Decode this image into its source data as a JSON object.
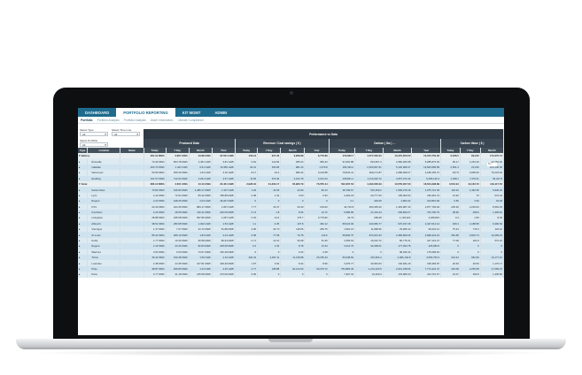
{
  "app": {
    "top_tabs": [
      "DASHBOARD",
      "PORTFOLIO REPORTING",
      "KIT MGMT",
      "ADMIN"
    ],
    "active_top_tab": 1,
    "sub_tabs": [
      "Portfolio",
      "Portfolio Analysis",
      "Portfolio Analysis",
      "Asset Information",
      "Climate Compliance"
    ],
    "active_sub_tab": 0
  },
  "controls": {
    "select_type_label": "Select Type",
    "select_type_value": "All",
    "select_time_label": "Select Time Line",
    "select_time_value": "All",
    "select_portfolio_label": "Select Portfolio",
    "select_portfolio_value": "All"
  },
  "table": {
    "title": "Performance vs Data",
    "groups": [
      "Produced Data",
      "Revenue / Cost savings ( $ )",
      "Carbon ( lbs ) ↔",
      "Carbon Value ( $ )"
    ],
    "search_placeholder": "Fin",
    "columns": [
      "Type",
      "Location",
      "Name",
      "Today",
      "7 Day",
      "Month",
      "Past",
      "Today",
      "7 Day",
      "Month",
      "Year",
      "Today",
      "7 Day",
      "Month",
      "Year",
      "Today",
      "7 Day",
      "Month"
    ],
    "rows": [
      {
        "kind": "group",
        "type": "Battery",
        "location": "",
        "cells": [
          "481.31 MWh",
          "3.807 GWh",
          "13.88 GWh",
          "22.501 GWh",
          "103.13",
          "917.33",
          "3,908.98",
          "6,776.89",
          "476,660.7",
          "4,577,000.00",
          "10,370,000.00",
          "15,370,750.26",
          "6,236.5",
          "80,216",
          "170,375.74"
        ]
      },
      {
        "kind": "row",
        "location": "Roseville",
        "cells": [
          "73.46 MWh",
          "504.78 MWh",
          "2,461 GWh",
          "3.81 GWh",
          "9.62",
          "113.82",
          "485.24",
          "983.43",
          "91,562.88",
          "819,837.4",
          "3,386,482.88",
          "5,285,876.03",
          "99.17",
          "1,243.29",
          "42,754.00"
        ]
      },
      {
        "kind": "row",
        "location": "Oakdale",
        "cells": [
          "203.70 MWh",
          "1.421 GWh",
          "6.51 GWh",
          "10.350 GWh",
          "32.31",
          "333.68",
          "981.23",
          "1,076.8",
          "183,336.2",
          "2,253,837.61",
          "5,130,966.07",
          "16,600,686.89",
          "2,651.3",
          "23,190",
          "104,130.00"
        ]
      },
      {
        "kind": "row",
        "location": "Vancouver",
        "cells": [
          "50.99 MWh",
          "369.33 MWh",
          "1.63 GWh",
          "3.16 GWh",
          "8.17",
          "43.4",
          "986.44",
          "3,103.88",
          "78,844.41",
          "269,171.87",
          "2,288,369.27",
          "2,189,155.72",
          "407.8",
          "3,055.00",
          "75,223.93"
        ]
      },
      {
        "kind": "row",
        "location": "Redding",
        "cells": [
          "101.57 MWh",
          "712.04 MWh",
          "3.261 GWh",
          "4.57 GWh",
          "11.65",
          "370.40",
          "2,444.78",
          "4,221.03",
          "108,831.1",
          "1,113,302.72",
          "4,057,372.44",
          "6,256,146.3",
          "1,038.1",
          "7,476.01",
          "36,447.8"
        ]
      },
      {
        "kind": "group",
        "type": "Solar",
        "location": "",
        "cells": [
          "386.13 MWh",
          "2.601 GWh",
          "13.13 GWh",
          "23.401 GWh",
          "2,928.04",
          "31,303.17",
          "35,980.79",
          "73,555.44",
          "502,367.52",
          "4,490,006.09",
          "13,555,007.00",
          "18,534,398.89",
          "3,504.94",
          "44,184.73",
          "149,117.50"
        ]
      },
      {
        "kind": "row",
        "location": "Santa Clara",
        "cells": [
          "73.82 MWh",
          "446.83 MWh",
          "1,486.17 MWh",
          "1.337 GWh",
          "1.29",
          "10.06",
          "44.90",
          "82.13",
          "48,799.67",
          "515,259.2",
          "1,596,279.18",
          "1,975,721.35",
          "118.40",
          "1,462.35",
          "6,940.26"
        ]
      },
      {
        "kind": "row",
        "location": "Lynn",
        "cells": [
          "2.14 MWh",
          "72.51 MWh",
          "83.42 MWh",
          "155.88 MWh",
          "0.08",
          "1.34",
          "3.00",
          "6.30",
          "3,462.18",
          "20,777.60",
          "105,002.64",
          "165,461.72",
          "13.92",
          "70",
          "672.43"
        ]
      },
      {
        "kind": "row",
        "location": "Regent",
        "cells": [
          "2.22 MWh",
          "248.25 MWh",
          "2.03 GWh",
          "18.207 MWh",
          "0",
          "0",
          "0",
          "0",
          "4.1",
          "420.05",
          "2,802.44",
          "103,861.69",
          "0.65",
          "4.39",
          "33.48"
        ]
      },
      {
        "kind": "row",
        "location": "NYC",
        "cells": [
          "23.43 MWh",
          "224.35 MWh",
          "884.17 MWh",
          "1.807 GWh",
          "7.77",
          "15.47",
          "33.30",
          "103.06",
          "44,726.8",
          "353,305.26",
          "1,393,987.33",
          "2,877,766.92",
          "235.39",
          "2,236.64",
          "8,563.25"
        ]
      },
      {
        "kind": "row",
        "location": "Irvin/Glen",
        "cells": [
          "4.23 MWh",
          "28.05 MWh",
          "116.21 MWh",
          "240.05 MWh",
          "0.74",
          "1.8",
          "8.06",
          "14.72",
          "6,586.85",
          "47,223.44",
          "206,893.27",
          "376,790.76",
          "38.96",
          "299.6",
          "1,339.62"
        ]
      },
      {
        "kind": "row",
        "location": "Livingston",
        "cells": [
          "28.88 MWh",
          "185.68 MWh",
          "597.86 MWh",
          "1,097 GWh",
          "0.32",
          "21.6",
          "175.7",
          "3,779.82",
          "44,79",
          "298,28",
          "1,194,021",
          "4,028,810",
          "0.3",
          "1.84",
          "8.03"
        ]
      },
      {
        "kind": "row",
        "location": "Albrecht",
        "cells": [
          "38.51 MWh",
          "280.68 MWh",
          "1,002 GWh",
          "1.54 GWh",
          "1.1",
          "4.35",
          "107.8",
          "481.12",
          "58,624.09",
          "443,983.77",
          "976,337.28",
          "2,447,012.14",
          "183.4",
          "1,188.58",
          "6,390.69"
        ]
      },
      {
        "kind": "row",
        "location": "Vienrigue",
        "cells": [
          "1.37 MWh",
          "7.07 MWh",
          "23.72 MWh",
          "51.88 MWh",
          "4.96",
          "34.70",
          "118.05",
          "283.75",
          "1,561.15",
          "11,898.66",
          "33,965.42",
          "96,022.12",
          "75.44",
          "715.3",
          "123.22"
        ]
      },
      {
        "kind": "row",
        "location": "St Louis",
        "cells": [
          "85.24 MWh",
          "489.13 MWh",
          "1.83 GWh",
          "3.44 GWh",
          "6.08",
          "77.68",
          "79.78",
          "144.6",
          "58,896.75",
          "874,913.33",
          "2,389,809.05",
          "4,898,424.19",
          "381.58",
          "2,804.74",
          "10,469.15"
        ]
      },
      {
        "kind": "row",
        "location": "Kohls",
        "cells": [
          "1.77 MWh",
          "10.33 MWh",
          "36.58 MWh",
          "89.94 MWh",
          "0.71",
          "12.01",
          "30.08",
          "51.35",
          "3,459.53",
          "19,222.72",
          "86,776.31",
          "107,151.07",
          "77.08",
          "181.8",
          "572.22"
        ]
      },
      {
        "kind": "row",
        "location": "Regent",
        "cells": [
          "2.13 MWh",
          "23.44 MWh",
          "82.84 MWh",
          "205.08 MWh",
          "0.2",
          "1.33",
          "8.78",
          "13.44",
          "3,214.75",
          "32,308.01",
          "177,393.78",
          "225,050.5",
          "0",
          "0",
          "0"
        ]
      },
      {
        "kind": "row",
        "location": "Warriors",
        "cells": [
          "0.00 MWh",
          "0.00 MWh",
          "73.07 MWh",
          "152.48 MWh",
          "0",
          "0",
          "0.22",
          "0.48",
          "0",
          "0",
          "98,033.44",
          "175,089.81",
          "0",
          "0",
          "0"
        ]
      },
      {
        "kind": "row",
        "location": "Tinton",
        "cells": [
          "35.44 MWh",
          "190.48 MWh",
          "1.50 GWh",
          "2.19 GWh",
          "402.44",
          "2,397.11",
          "11,135.88",
          "25,155.43",
          "50,038.84",
          "291,664.4",
          "2,006,104.8",
          "3,056,750.3",
          "313.44",
          "962.69",
          "10,177.10"
        ]
      },
      {
        "kind": "row",
        "location": "Lowndes",
        "cells": [
          "2.48 MWh",
          "24.35 MWh",
          "107.81 MWh",
          "169.46 MWh",
          "1.87",
          "3.63",
          "8.44",
          "8.96",
          "3,379.77",
          "33,964.00",
          "146,481.29",
          "168,483.87",
          "26.49",
          "26.09",
          "1,170.17"
        ]
      },
      {
        "kind": "row",
        "location": "Pluto",
        "cells": [
          "38.87 MWh",
          "266.80 MWh",
          "1.23 GWh",
          "2.45 GWh",
          "4.77",
          "138.88",
          "30,144.00",
          "60,375.72",
          "754,884.39",
          "1,231,223.5",
          "2,031,238.66",
          "7,772,424.47",
          "434.08",
          "2,250.58",
          "17,083.15"
        ]
      },
      {
        "kind": "row",
        "location": "Paris",
        "cells": [
          "4.77 MWh",
          "31.18 MWh",
          "145.58 MWh",
          "270.06 MWh",
          "6.06",
          "0",
          "0",
          "0",
          "7,997.32",
          "34,209.9",
          "133,986.33",
          "244,791.57",
          "43.07",
          "363.9",
          "1,435.86"
        ]
      }
    ]
  }
}
